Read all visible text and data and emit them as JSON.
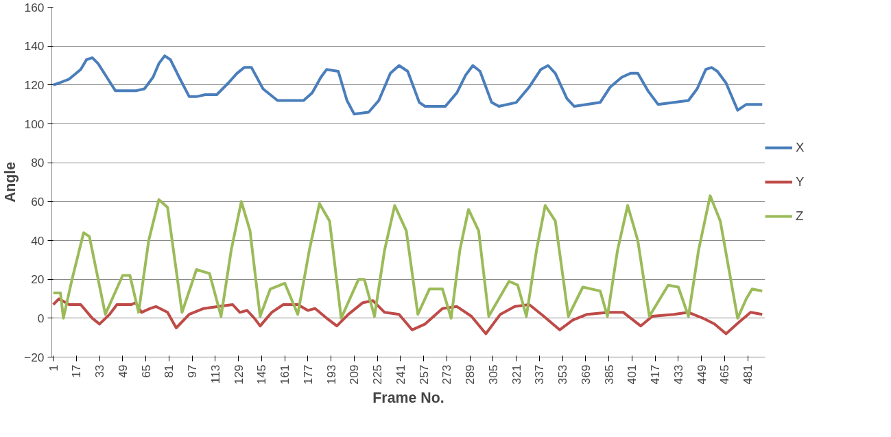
{
  "chart_data": {
    "type": "line",
    "xlabel": "Frame No.",
    "ylabel": "Angle",
    "xlim": [
      0,
      493
    ],
    "ylim": [
      -20,
      160
    ],
    "xticks": [
      1,
      17,
      33,
      49,
      65,
      81,
      97,
      113,
      129,
      145,
      161,
      177,
      193,
      209,
      225,
      241,
      257,
      273,
      289,
      305,
      321,
      337,
      353,
      369,
      385,
      401,
      417,
      433,
      449,
      465,
      481
    ],
    "yticks": [
      -20,
      0,
      20,
      40,
      60,
      80,
      100,
      120,
      140,
      160
    ],
    "grid": "y",
    "legend": "right",
    "series": [
      {
        "name": "X",
        "color": "#4a7ebb",
        "x": [
          1,
          5,
          12,
          20,
          24,
          28,
          32,
          38,
          44,
          50,
          58,
          64,
          70,
          74,
          78,
          82,
          88,
          95,
          100,
          106,
          114,
          122,
          128,
          133,
          138,
          146,
          156,
          174,
          180,
          186,
          190,
          198,
          204,
          209,
          219,
          226,
          234,
          240,
          246,
          254,
          258,
          272,
          280,
          286,
          291,
          296,
          304,
          309,
          321,
          330,
          338,
          343,
          348,
          356,
          361,
          379,
          386,
          394,
          400,
          405,
          412,
          419,
          440,
          446,
          452,
          456,
          460,
          466,
          474,
          480,
          491
        ],
        "values": [
          120,
          121,
          123,
          128,
          133,
          134,
          131,
          124,
          117,
          117,
          117,
          118,
          124,
          131,
          135,
          133,
          124,
          114,
          114,
          115,
          115,
          121,
          126,
          129,
          129,
          118,
          112,
          112,
          116,
          124,
          128,
          127,
          112,
          105,
          106,
          112,
          126,
          130,
          127,
          111,
          109,
          109,
          116,
          125,
          130,
          127,
          111,
          109,
          111,
          119,
          128,
          130,
          126,
          113,
          109,
          111,
          119,
          124,
          126,
          126,
          117,
          110,
          112,
          118,
          128,
          129,
          127,
          121,
          107,
          110,
          110
        ]
      },
      {
        "name": "Y",
        "color": "#be4b48",
        "x": [
          1,
          5,
          12,
          20,
          28,
          33,
          40,
          45,
          55,
          58,
          62,
          68,
          72,
          80,
          86,
          95,
          105,
          115,
          125,
          130,
          135,
          140,
          144,
          152,
          160,
          170,
          177,
          182,
          190,
          197,
          205,
          215,
          222,
          230,
          240,
          249,
          258,
          270,
          280,
          290,
          300,
          310,
          320,
          330,
          340,
          351,
          360,
          370,
          385,
          395,
          407,
          415,
          430,
          440,
          450,
          458,
          466,
          475,
          483,
          491
        ],
        "values": [
          7,
          10,
          7,
          7,
          0,
          -3,
          2,
          7,
          7,
          8,
          3,
          5,
          6,
          3,
          -5,
          2,
          5,
          6,
          7,
          3,
          4,
          0,
          -4,
          3,
          7,
          7,
          4,
          5,
          0,
          -4,
          2,
          8,
          9,
          3,
          2,
          -6,
          -3,
          5,
          6,
          1,
          -8,
          2,
          6,
          7,
          1,
          -6,
          -1,
          2,
          3,
          3,
          -4,
          1,
          2,
          3,
          0,
          -3,
          -8,
          -2,
          3,
          2
        ]
      },
      {
        "name": "Z",
        "color": "#9bbb59",
        "x": [
          1,
          6,
          8,
          14,
          22,
          26,
          37,
          49,
          54,
          60,
          67,
          74,
          80,
          90,
          100,
          109,
          117,
          124,
          131,
          137,
          144,
          151,
          161,
          170,
          178,
          185,
          192,
          200,
          212,
          216,
          223,
          230,
          237,
          245,
          253,
          261,
          270,
          276,
          282,
          288,
          295,
          302,
          316,
          322,
          328,
          335,
          341,
          348,
          357,
          367,
          379,
          384,
          391,
          398,
          405,
          413,
          426,
          433,
          440,
          447,
          455,
          462,
          474,
          480,
          484,
          491
        ],
        "values": [
          13,
          13,
          0,
          20,
          44,
          42,
          2,
          22,
          22,
          3,
          40,
          61,
          57,
          3,
          25,
          23,
          1,
          35,
          60,
          45,
          1,
          15,
          18,
          2,
          35,
          59,
          50,
          0,
          20,
          20,
          1,
          35,
          58,
          45,
          2,
          15,
          15,
          0,
          35,
          56,
          45,
          1,
          19,
          17,
          1,
          35,
          58,
          50,
          1,
          16,
          14,
          1,
          35,
          58,
          40,
          1,
          17,
          16,
          1,
          35,
          63,
          50,
          0,
          10,
          15,
          14
        ]
      }
    ]
  }
}
